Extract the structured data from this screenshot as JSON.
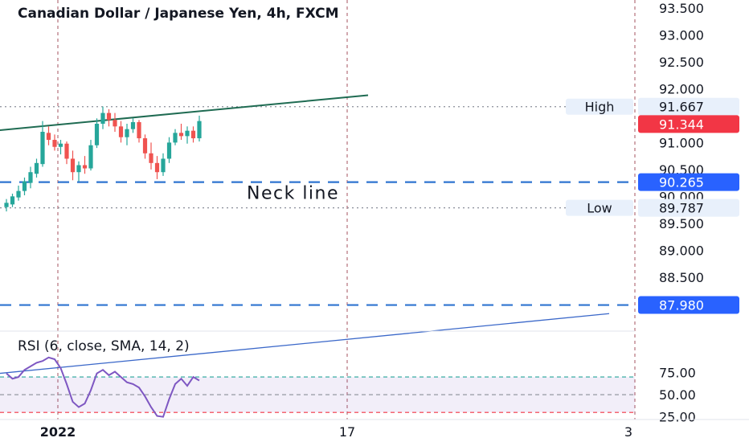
{
  "chart_data": {
    "type": "candlestick",
    "title": "Canadian Dollar / Japanese Yen, 4h, FXCM",
    "price_axis": {
      "ticks": [
        "93.500",
        "93.000",
        "92.500",
        "92.000",
        "91.500",
        "91.000",
        "90.500",
        "90.000",
        "89.500",
        "89.000",
        "88.500"
      ],
      "range": [
        87.6,
        93.65
      ]
    },
    "time_axis": {
      "ticks": [
        "2022",
        "17",
        "3"
      ]
    },
    "candles": [
      {
        "o": 89.8,
        "h": 89.95,
        "l": 89.72,
        "c": 89.88
      },
      {
        "o": 89.85,
        "h": 90.05,
        "l": 89.8,
        "c": 90.0
      },
      {
        "o": 89.98,
        "h": 90.2,
        "l": 89.92,
        "c": 90.1
      },
      {
        "o": 90.1,
        "h": 90.35,
        "l": 90.02,
        "c": 90.28
      },
      {
        "o": 90.25,
        "h": 90.55,
        "l": 90.15,
        "c": 90.45
      },
      {
        "o": 90.42,
        "h": 90.7,
        "l": 90.35,
        "c": 90.62
      },
      {
        "o": 90.6,
        "h": 91.4,
        "l": 90.55,
        "c": 91.2
      },
      {
        "o": 91.18,
        "h": 91.3,
        "l": 90.95,
        "c": 91.05
      },
      {
        "o": 91.05,
        "h": 91.15,
        "l": 90.85,
        "c": 90.92
      },
      {
        "o": 90.92,
        "h": 91.05,
        "l": 90.78,
        "c": 90.98
      },
      {
        "o": 90.98,
        "h": 91.02,
        "l": 90.6,
        "c": 90.7
      },
      {
        "o": 90.7,
        "h": 90.85,
        "l": 90.3,
        "c": 90.45
      },
      {
        "o": 90.45,
        "h": 90.65,
        "l": 90.28,
        "c": 90.58
      },
      {
        "o": 90.58,
        "h": 90.75,
        "l": 90.42,
        "c": 90.52
      },
      {
        "o": 90.52,
        "h": 91.05,
        "l": 90.48,
        "c": 90.95
      },
      {
        "o": 90.95,
        "h": 91.45,
        "l": 90.9,
        "c": 91.35
      },
      {
        "o": 91.35,
        "h": 91.67,
        "l": 91.25,
        "c": 91.55
      },
      {
        "o": 91.55,
        "h": 91.62,
        "l": 91.3,
        "c": 91.42
      },
      {
        "o": 91.42,
        "h": 91.55,
        "l": 91.2,
        "c": 91.3
      },
      {
        "o": 91.3,
        "h": 91.4,
        "l": 91.0,
        "c": 91.1
      },
      {
        "o": 91.1,
        "h": 91.35,
        "l": 90.95,
        "c": 91.25
      },
      {
        "o": 91.25,
        "h": 91.45,
        "l": 91.18,
        "c": 91.38
      },
      {
        "o": 91.38,
        "h": 91.42,
        "l": 91.0,
        "c": 91.08
      },
      {
        "o": 91.08,
        "h": 91.15,
        "l": 90.7,
        "c": 90.8
      },
      {
        "o": 90.8,
        "h": 91.0,
        "l": 90.5,
        "c": 90.62
      },
      {
        "o": 90.62,
        "h": 90.75,
        "l": 90.32,
        "c": 90.45
      },
      {
        "o": 90.45,
        "h": 90.8,
        "l": 90.38,
        "c": 90.7
      },
      {
        "o": 90.7,
        "h": 91.1,
        "l": 90.62,
        "c": 91.0
      },
      {
        "o": 91.0,
        "h": 91.25,
        "l": 90.95,
        "c": 91.18
      },
      {
        "o": 91.18,
        "h": 91.35,
        "l": 91.05,
        "c": 91.12
      },
      {
        "o": 91.12,
        "h": 91.3,
        "l": 90.98,
        "c": 91.22
      },
      {
        "o": 91.22,
        "h": 91.3,
        "l": 91.0,
        "c": 91.08
      },
      {
        "o": 91.08,
        "h": 91.5,
        "l": 91.02,
        "c": 91.4
      }
    ],
    "trendline_resistance": {
      "from": {
        "i": -2,
        "p": 91.22
      },
      "to": {
        "i": 60,
        "p": 91.88
      }
    },
    "trendline_support": {
      "from": {
        "i": -2,
        "p": 86.7
      },
      "to": {
        "i": 100,
        "p": 87.82
      }
    },
    "horizontal_lines": [
      {
        "price": 91.667,
        "label": "High",
        "value_label": "91.667",
        "style": "dotted"
      },
      {
        "price": 89.787,
        "label": "Low",
        "value_label": "89.787",
        "style": "dotted"
      },
      {
        "price": 90.265,
        "value_label": "90.265",
        "style": "dashed"
      },
      {
        "price": 87.98,
        "value_label": "87.980",
        "style": "dashed"
      }
    ],
    "current_price": {
      "value": 91.344,
      "label": "91.344"
    },
    "annotation": {
      "text": "Neck line",
      "price": 90.07
    },
    "rsi": {
      "label": "RSI (6, close, SMA, 14, 2)",
      "ticks": [
        "75.00",
        "50.00",
        "25.00"
      ],
      "levels": [
        70,
        50,
        30
      ],
      "range": [
        22,
        100
      ],
      "values": [
        74,
        68,
        70,
        78,
        82,
        86,
        88,
        92,
        90,
        80,
        62,
        42,
        36,
        40,
        55,
        74,
        78,
        72,
        76,
        70,
        64,
        62,
        58,
        48,
        36,
        26,
        25,
        45,
        62,
        68,
        60,
        70,
        66
      ]
    }
  }
}
